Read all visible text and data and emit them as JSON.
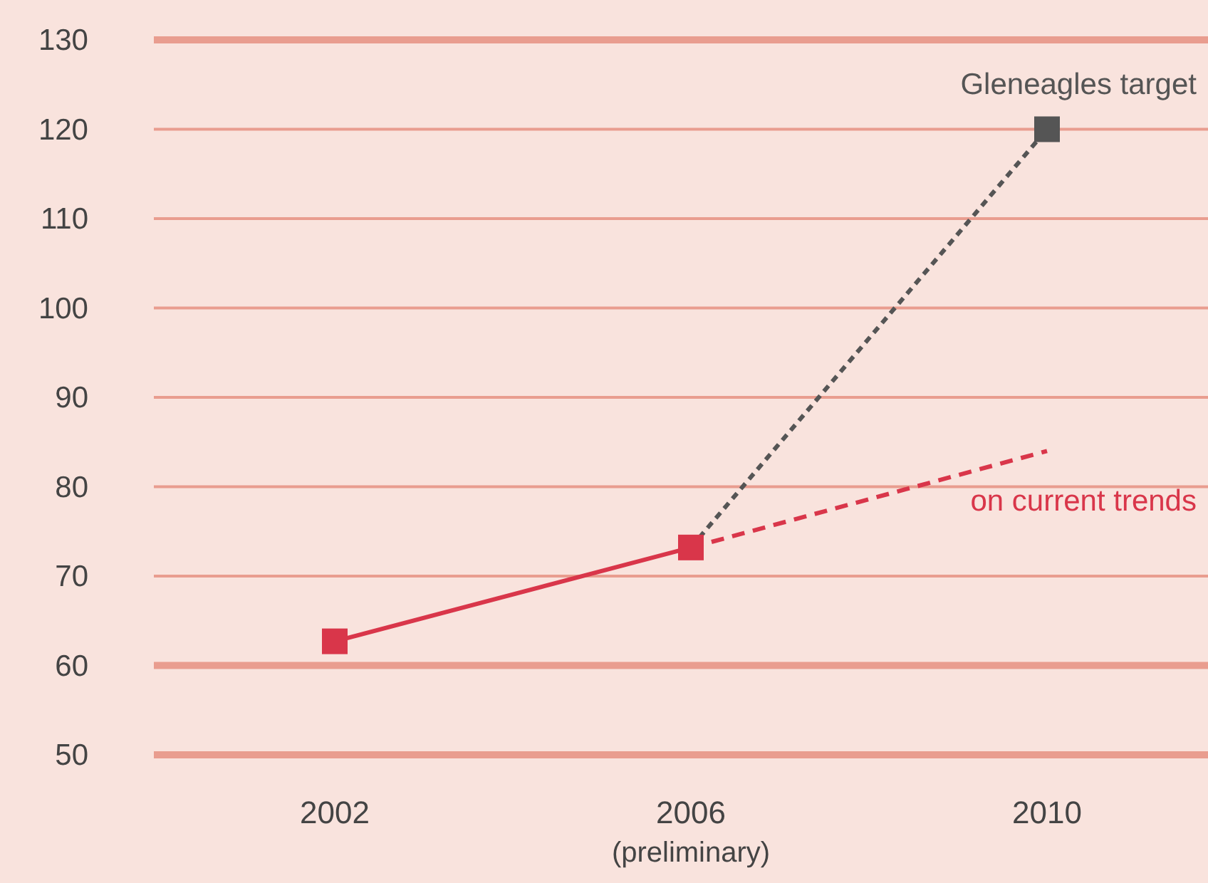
{
  "chart_data": {
    "type": "line",
    "categories": [
      "2002",
      "2006\n(preliminary)",
      "2010"
    ],
    "ylim": [
      50,
      130
    ],
    "yticks": [
      50,
      60,
      70,
      80,
      90,
      100,
      110,
      120,
      130
    ],
    "grid": "y",
    "legend": false,
    "ref_lines": [
      {
        "axis": "y",
        "value": 60,
        "color": "#e99d8f"
      }
    ],
    "series": [
      {
        "name": "Gleneagles target",
        "color": "#555555",
        "values": [
          null,
          73.2,
          120
        ],
        "line_style": "dotted",
        "marker": "square"
      },
      {
        "name": "on current trends",
        "color": "#d9364a",
        "values": [
          null,
          73.2,
          84
        ],
        "line_style": "dashed"
      },
      {
        "color": "#d9364a",
        "values": [
          62.7,
          73.2,
          null
        ],
        "line_style": "solid",
        "marker": "square"
      }
    ]
  }
}
